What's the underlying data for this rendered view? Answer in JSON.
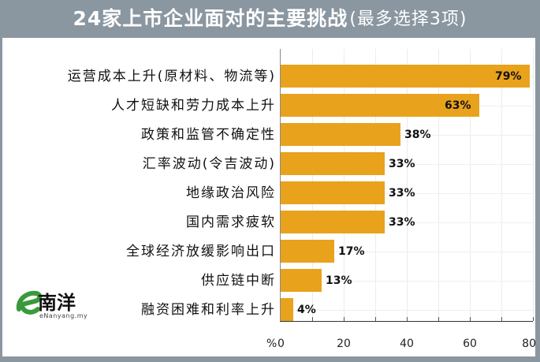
{
  "title": {
    "main": "24家上市企业面对的主要挑战",
    "sub": "(最多选择3项)"
  },
  "colors": {
    "background": "#8a96a0",
    "bar": "#e8a21c",
    "logo_green": "#3a9a3a"
  },
  "logo": {
    "text_cn": "南洋",
    "prefix": "e",
    "url": "eNanyang.my"
  },
  "axis": {
    "unit": "%",
    "ticks": [
      "0",
      "20",
      "40",
      "60",
      "80"
    ]
  },
  "chart_data": {
    "type": "bar",
    "orientation": "horizontal",
    "title": "24家上市企业面对的主要挑战(最多选择3项)",
    "xlabel": "%",
    "ylabel": "",
    "xlim": [
      0,
      80
    ],
    "grid": true,
    "categories": [
      "运营成本上升(原材料、物流等)",
      "人才短缺和劳力成本上升",
      "政策和监管不确定性",
      "汇率波动(令吉波动)",
      "地缘政治风险",
      "国内需求疲软",
      "全球经济放缓影响出口",
      "供应链中断",
      "融资困难和利率上升"
    ],
    "values": [
      79,
      63,
      38,
      33,
      33,
      33,
      17,
      13,
      4
    ],
    "value_labels": [
      "79%",
      "63%",
      "38%",
      "33%",
      "33%",
      "33%",
      "17%",
      "13%",
      "4%"
    ]
  }
}
